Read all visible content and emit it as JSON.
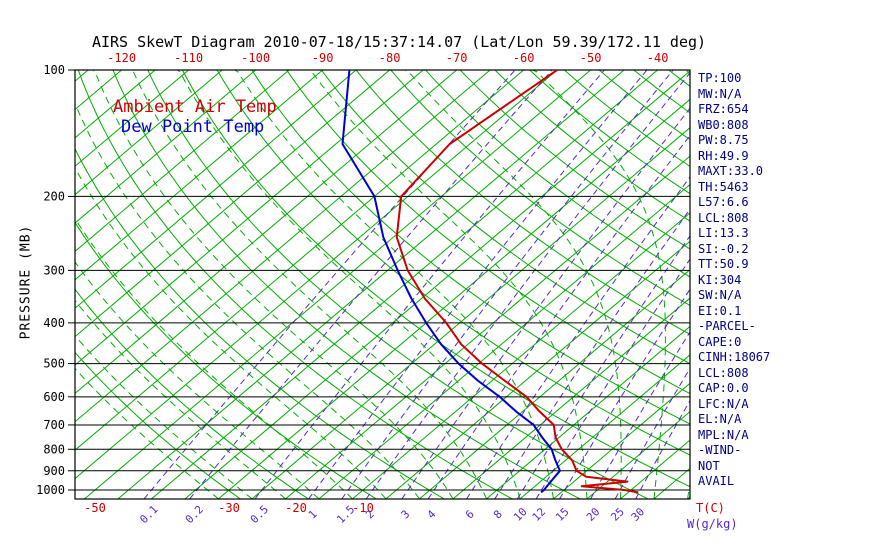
{
  "title": "AIRS SkewT Diagram 2010-07-18/15:37:14.07 (Lat/Lon 59.39/172.11 deg)",
  "legend": {
    "air_temp_label": "Ambient Air Temp",
    "dew_point_label": "Dew Point Temp"
  },
  "axes": {
    "pressure_axis_label": "PRESSURE (MB)",
    "pressure_ticks": [
      100,
      200,
      300,
      400,
      500,
      600,
      700,
      800,
      900,
      1000
    ],
    "top_temperature_ticks": [
      -120,
      -110,
      -100,
      -90,
      -80,
      -70,
      -60,
      -50,
      -40
    ],
    "bottom_temperature_ticks": [
      -50,
      -30,
      -20,
      -10
    ],
    "temperature_unit_label": "T(C)",
    "mixing_ratio_ticks": [
      0.1,
      0.2,
      0.5,
      1,
      1.5,
      2,
      3,
      4,
      6,
      8,
      10,
      12,
      15,
      20,
      25,
      30
    ],
    "mixing_ratio_unit_label": "W(g/kg)"
  },
  "stats_panel": [
    "TP:100",
    "MW:N/A",
    "FRZ:654",
    "WB0:808",
    "PW:8.75",
    "RH:49.9",
    "MAXT:33.0",
    "TH:5463",
    "L57:6.6",
    "LCL:808",
    "LI:13.3",
    "SI:-0.2",
    "TT:50.9",
    "KI:304",
    "SW:N/A",
    "EI:0.1",
    "-PARCEL-",
    "CAPE:0",
    "CINH:18067",
    "LCL:808",
    "CAP:0.0",
    "LFC:N/A",
    "EL:N/A",
    "MPL:N/A",
    "-WIND-",
    "NOT",
    "AVAIL"
  ],
  "colors": {
    "grid_green": "#00ad00",
    "mixing_ratio_purple": "#5527cc",
    "stats_navy": "#000080",
    "temp_red": "#cc0000",
    "dewpoint_blue": "#0000cc",
    "axis_black": "#000000"
  },
  "chart_data": {
    "type": "line",
    "title": "AIRS SkewT Diagram 2010-07-18/15:37:14.07 (Lat/Lon 59.39/172.11 deg)",
    "x_label": "Temperature (C)",
    "y_label": "Pressure (MB)",
    "y_scale": "log",
    "y_range_mb": [
      100,
      1050
    ],
    "skew": "isotherms slanted up-right (skew-T log-P)",
    "grid": {
      "isotherms_c": {
        "min": -130,
        "max": 45,
        "step": 5,
        "style": "solid green"
      },
      "dry_adiabats_k": {
        "min": 243,
        "max": 453,
        "step": 10,
        "style": "solid green"
      },
      "moist_adiabats_c": {
        "min": -30,
        "max": 45,
        "step": 5,
        "style": "dashed green"
      },
      "mixing_ratio_g_kg": [
        0.1,
        0.2,
        0.5,
        1,
        1.5,
        2,
        3,
        4,
        6,
        8,
        10,
        12,
        15,
        20,
        25,
        30
      ],
      "pressure_lines_mb": [
        100,
        200,
        300,
        400,
        500,
        600,
        700,
        800,
        900,
        1000
      ]
    },
    "series": [
      {
        "name": "Ambient Air Temp",
        "color": "#cc0000",
        "points_pressure_mb_temp_c": [
          [
            1013,
            31.5
          ],
          [
            1000,
            29
          ],
          [
            980,
            22
          ],
          [
            955,
            28
          ],
          [
            930,
            21
          ],
          [
            900,
            18.5
          ],
          [
            850,
            16
          ],
          [
            800,
            12.5
          ],
          [
            750,
            9.5
          ],
          [
            700,
            7
          ],
          [
            650,
            2.5
          ],
          [
            600,
            -2
          ],
          [
            550,
            -8
          ],
          [
            500,
            -14.5
          ],
          [
            450,
            -21
          ],
          [
            400,
            -27
          ],
          [
            350,
            -34.5
          ],
          [
            300,
            -42
          ],
          [
            250,
            -49.5
          ],
          [
            200,
            -56
          ],
          [
            150,
            -58
          ],
          [
            100,
            -55
          ]
        ]
      },
      {
        "name": "Dew Point Temp",
        "color": "#0000cc",
        "points_pressure_mb_temp_c": [
          [
            1013,
            17
          ],
          [
            1000,
            17
          ],
          [
            950,
            16.5
          ],
          [
            900,
            16
          ],
          [
            850,
            13.5
          ],
          [
            800,
            11
          ],
          [
            750,
            7.5
          ],
          [
            700,
            4
          ],
          [
            650,
            -1
          ],
          [
            600,
            -6
          ],
          [
            550,
            -12
          ],
          [
            500,
            -18
          ],
          [
            450,
            -24
          ],
          [
            400,
            -30
          ],
          [
            350,
            -36.5
          ],
          [
            300,
            -43.5
          ],
          [
            250,
            -51.5
          ],
          [
            200,
            -60
          ],
          [
            150,
            -74
          ],
          [
            100,
            -86
          ]
        ]
      }
    ]
  }
}
